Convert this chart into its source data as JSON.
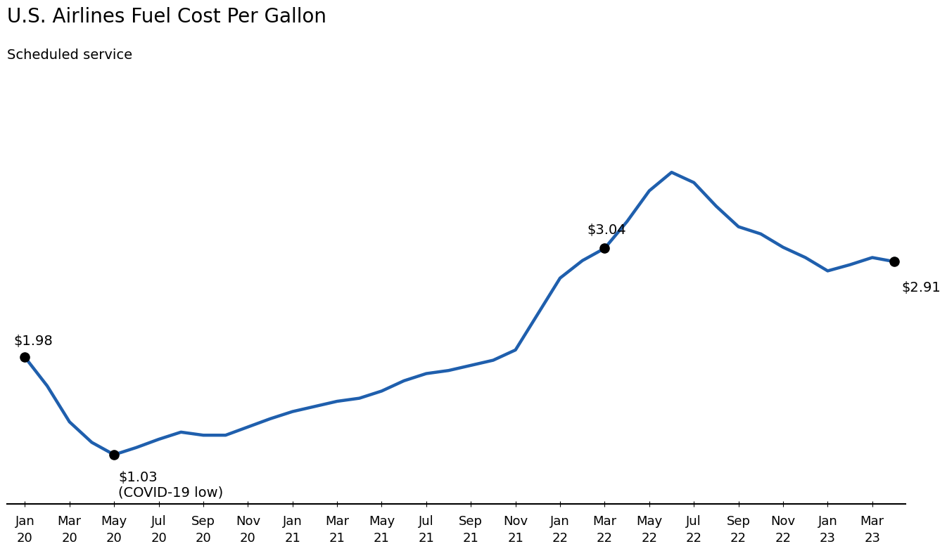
{
  "title": "U.S. Airlines Fuel Cost Per Gallon",
  "subtitle": "Scheduled service",
  "line_color": "#1F5FAD",
  "line_width": 3.2,
  "background_color": "#FFFFFF",
  "dot_color": "#000000",
  "dot_size": 90,
  "x_tick_labels": [
    "Jan\n20",
    "Mar\n20",
    "May\n20",
    "Jul\n20",
    "Sep\n20",
    "Nov\n20",
    "Jan\n21",
    "Mar\n21",
    "May\n21",
    "Jul\n21",
    "Sep\n21",
    "Nov\n21",
    "Jan\n22",
    "Mar\n22",
    "May\n22",
    "Jul\n22",
    "Sep\n22",
    "Nov\n22",
    "Jan\n23",
    "Mar\n23"
  ],
  "x_tick_positions": [
    0,
    2,
    4,
    6,
    8,
    10,
    12,
    14,
    16,
    18,
    20,
    22,
    24,
    26,
    28,
    30,
    32,
    34,
    36,
    38
  ],
  "values": [
    1.98,
    1.7,
    1.35,
    1.15,
    1.03,
    1.1,
    1.18,
    1.25,
    1.22,
    1.22,
    1.3,
    1.38,
    1.45,
    1.5,
    1.55,
    1.58,
    1.65,
    1.75,
    1.82,
    1.85,
    1.9,
    1.95,
    2.05,
    2.4,
    2.75,
    2.92,
    3.04,
    3.3,
    3.6,
    3.78,
    3.68,
    3.45,
    3.25,
    3.18,
    3.05,
    2.95,
    2.82,
    2.88,
    2.95,
    2.91
  ],
  "ylim": [
    0.55,
    4.3
  ],
  "xlim": [
    -0.8,
    39.5
  ],
  "title_fontsize": 20,
  "subtitle_fontsize": 14,
  "tick_fontsize": 13,
  "annotation_fontsize": 14
}
